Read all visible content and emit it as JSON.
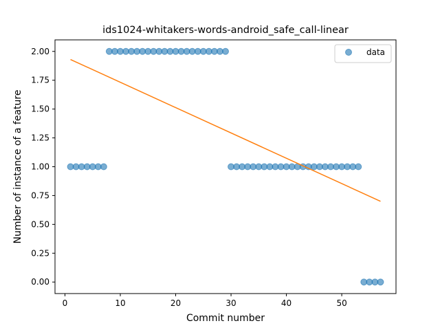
{
  "chart_data": {
    "type": "scatter",
    "title": "ids1024-whitakers-words-android_safe_call-linear",
    "xlabel": "Commit number",
    "ylabel": "Number of instance of a feature",
    "xlim": [
      -1.8,
      59.8
    ],
    "ylim": [
      -0.1,
      2.1
    ],
    "xticks": [
      0,
      10,
      20,
      30,
      40,
      50
    ],
    "xtick_labels": [
      "0",
      "10",
      "20",
      "30",
      "40",
      "50"
    ],
    "yticks": [
      0,
      0.25,
      0.5,
      0.75,
      1.0,
      1.25,
      1.5,
      1.75,
      2.0
    ],
    "ytick_labels": [
      "0.00",
      "0.25",
      "0.50",
      "0.75",
      "1.00",
      "1.25",
      "1.50",
      "1.75",
      "2.00"
    ],
    "grid": false,
    "legend_position": "top-right",
    "series": [
      {
        "name": "data",
        "kind": "scatter",
        "color": "#1f77b4",
        "points": [
          [
            1,
            1
          ],
          [
            2,
            1
          ],
          [
            3,
            1
          ],
          [
            4,
            1
          ],
          [
            5,
            1
          ],
          [
            6,
            1
          ],
          [
            7,
            1
          ],
          [
            8,
            2
          ],
          [
            9,
            2
          ],
          [
            10,
            2
          ],
          [
            11,
            2
          ],
          [
            12,
            2
          ],
          [
            13,
            2
          ],
          [
            14,
            2
          ],
          [
            15,
            2
          ],
          [
            16,
            2
          ],
          [
            17,
            2
          ],
          [
            18,
            2
          ],
          [
            19,
            2
          ],
          [
            20,
            2
          ],
          [
            21,
            2
          ],
          [
            22,
            2
          ],
          [
            23,
            2
          ],
          [
            24,
            2
          ],
          [
            25,
            2
          ],
          [
            26,
            2
          ],
          [
            27,
            2
          ],
          [
            28,
            2
          ],
          [
            29,
            2
          ],
          [
            30,
            1
          ],
          [
            31,
            1
          ],
          [
            32,
            1
          ],
          [
            33,
            1
          ],
          [
            34,
            1
          ],
          [
            35,
            1
          ],
          [
            36,
            1
          ],
          [
            37,
            1
          ],
          [
            38,
            1
          ],
          [
            39,
            1
          ],
          [
            40,
            1
          ],
          [
            41,
            1
          ],
          [
            42,
            1
          ],
          [
            43,
            1
          ],
          [
            44,
            1
          ],
          [
            45,
            1
          ],
          [
            46,
            1
          ],
          [
            47,
            1
          ],
          [
            48,
            1
          ],
          [
            49,
            1
          ],
          [
            50,
            1
          ],
          [
            51,
            1
          ],
          [
            52,
            1
          ],
          [
            53,
            1
          ],
          [
            54,
            0
          ],
          [
            55,
            0
          ],
          [
            56,
            0
          ],
          [
            57,
            0
          ]
        ]
      },
      {
        "kind": "line",
        "color": "#ff7f0e",
        "points": [
          [
            1,
            1.93
          ],
          [
            57,
            0.7
          ]
        ]
      }
    ]
  }
}
